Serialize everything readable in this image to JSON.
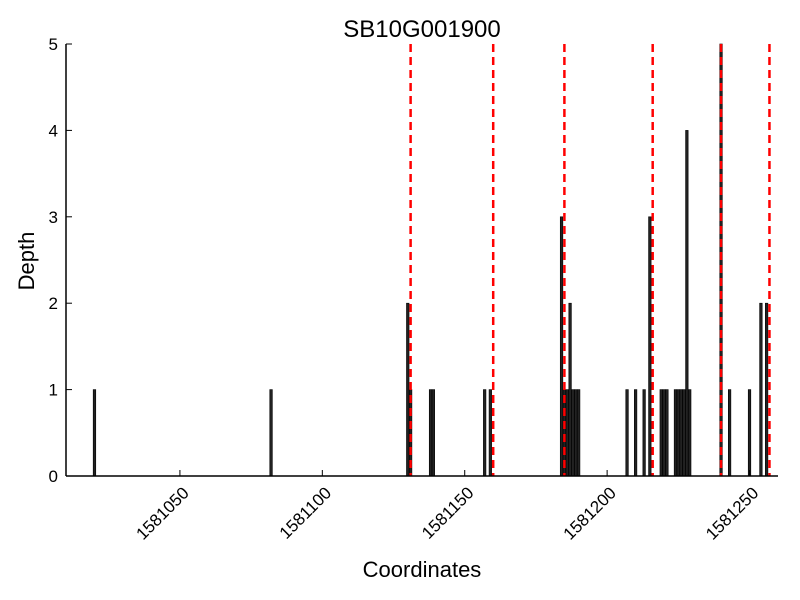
{
  "chart_data": {
    "type": "bar",
    "title": "SB10G001900",
    "xlabel": "Coordinates",
    "ylabel": "Depth",
    "xlim": [
      1581010,
      1581260
    ],
    "ylim": [
      0,
      5
    ],
    "x_ticks": [
      1581050,
      1581100,
      1581150,
      1581200,
      1581250
    ],
    "y_ticks": [
      0,
      1,
      2,
      3,
      4,
      5
    ],
    "grid": false,
    "bar_color": "#222222",
    "marker_color": "#ff0000",
    "bars": [
      {
        "x": 1581020,
        "y": 1
      },
      {
        "x": 1581082,
        "y": 1
      },
      {
        "x": 1581130,
        "y": 2
      },
      {
        "x": 1581131,
        "y": 1
      },
      {
        "x": 1581138,
        "y": 1
      },
      {
        "x": 1581139,
        "y": 1
      },
      {
        "x": 1581157,
        "y": 1
      },
      {
        "x": 1581159,
        "y": 1
      },
      {
        "x": 1581184,
        "y": 3
      },
      {
        "x": 1581185,
        "y": 1
      },
      {
        "x": 1581186,
        "y": 1
      },
      {
        "x": 1581187,
        "y": 2
      },
      {
        "x": 1581188,
        "y": 1
      },
      {
        "x": 1581189,
        "y": 1
      },
      {
        "x": 1581190,
        "y": 1
      },
      {
        "x": 1581207,
        "y": 1
      },
      {
        "x": 1581210,
        "y": 1
      },
      {
        "x": 1581213,
        "y": 1
      },
      {
        "x": 1581215,
        "y": 3
      },
      {
        "x": 1581219,
        "y": 1
      },
      {
        "x": 1581220,
        "y": 1
      },
      {
        "x": 1581221,
        "y": 1
      },
      {
        "x": 1581224,
        "y": 1
      },
      {
        "x": 1581225,
        "y": 1
      },
      {
        "x": 1581226,
        "y": 1
      },
      {
        "x": 1581227,
        "y": 1
      },
      {
        "x": 1581228,
        "y": 4
      },
      {
        "x": 1581229,
        "y": 1
      },
      {
        "x": 1581240,
        "y": 5
      },
      {
        "x": 1581243,
        "y": 1
      },
      {
        "x": 1581250,
        "y": 1
      },
      {
        "x": 1581254,
        "y": 2
      },
      {
        "x": 1581256,
        "y": 2
      }
    ],
    "vertical_markers": [
      1581131,
      1581160,
      1581185,
      1581216,
      1581240,
      1581257
    ]
  }
}
